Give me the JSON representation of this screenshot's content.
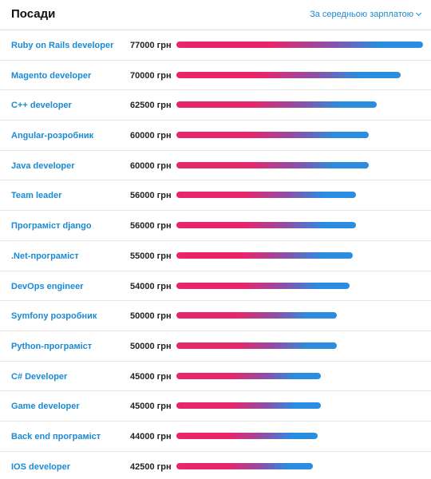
{
  "header": {
    "title": "Посади",
    "sort_label": "За середньою зарплатою"
  },
  "colors": {
    "bar_start": "#e8256b",
    "bar_end": "#2a8de0",
    "link": "#1a8ad4"
  },
  "chart_data": {
    "type": "bar",
    "orientation": "horizontal",
    "categories": [
      "Ruby on Rails developer",
      "Magento developer",
      "C++ developer",
      "Angular-розробник",
      "Java developer",
      "Team leader",
      "Програміст django",
      ".Net-програміст",
      "DevOps engineer",
      "Symfony розробник",
      "Python-програміст",
      "C# Developer",
      "Game developer",
      "Back end програміст",
      "IOS developer"
    ],
    "values": [
      77000,
      70000,
      62500,
      60000,
      60000,
      56000,
      56000,
      55000,
      54000,
      50000,
      50000,
      45000,
      45000,
      44000,
      42500
    ],
    "value_labels": [
      "77000 грн",
      "70000 грн",
      "62500 грн",
      "60000 грн",
      "60000 грн",
      "56000 грн",
      "56000 грн",
      "55000 грн",
      "54000 грн",
      "50000 грн",
      "50000 грн",
      "45000 грн",
      "45000 грн",
      "44000 грн",
      "42500 грн"
    ],
    "xlim": [
      0,
      77000
    ]
  }
}
